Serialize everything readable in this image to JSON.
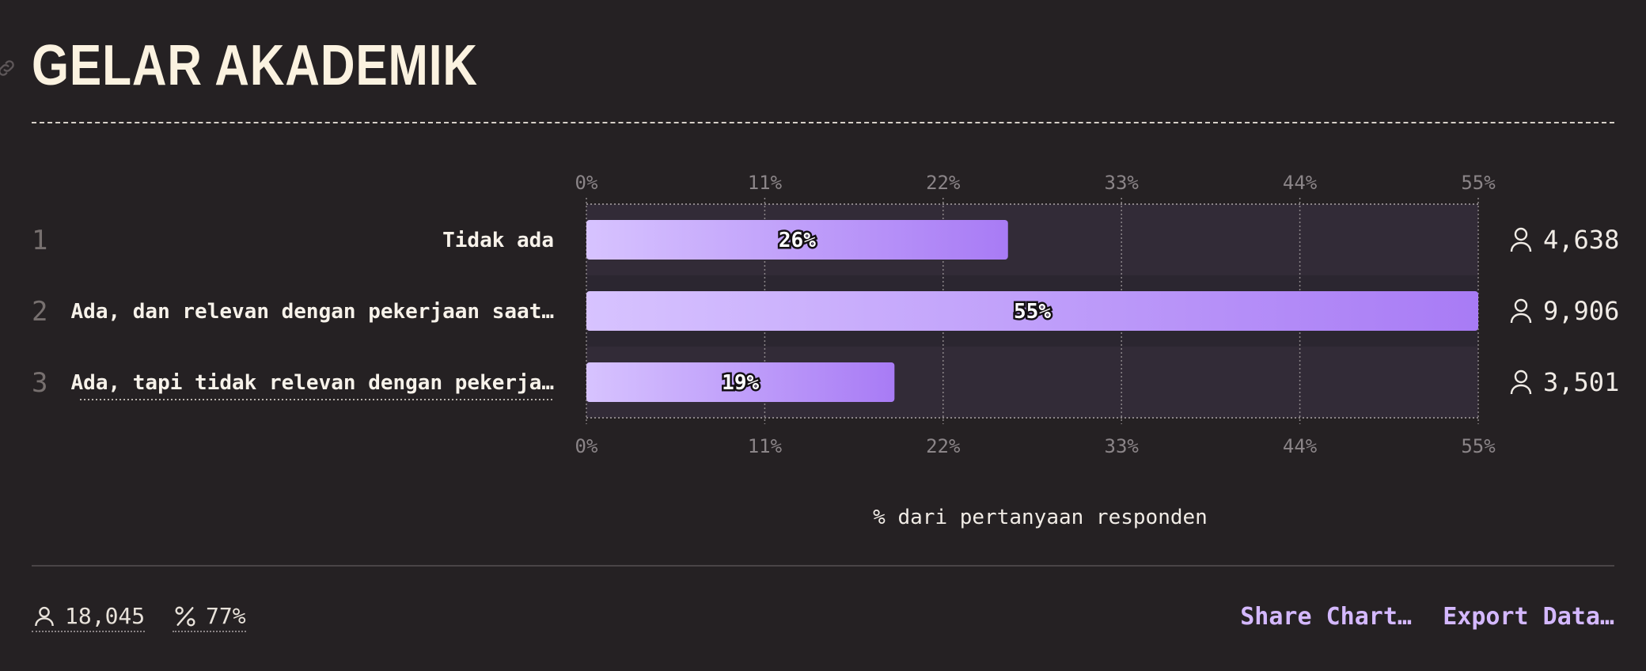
{
  "title": "GELAR AKADEMIK",
  "chart_data": {
    "type": "bar",
    "orientation": "horizontal",
    "title": "GELAR AKADEMIK",
    "xlabel": "% dari pertanyaan responden",
    "ylabel": "",
    "xlim": [
      0,
      55
    ],
    "ticks": [
      "0%",
      "11%",
      "22%",
      "33%",
      "44%",
      "55%"
    ],
    "grid": true,
    "categories": [
      "Tidak ada",
      "Ada, dan relevan dengan pekerjaan saat…",
      "Ada, tapi tidak relevan dengan pekerja…"
    ],
    "rows": [
      {
        "rank": "1",
        "label": "Tidak ada",
        "value": 26,
        "value_label": "26%",
        "count": "4,638"
      },
      {
        "rank": "2",
        "label": "Ada, dan relevan dengan pekerjaan saat…",
        "value": 55,
        "value_label": "55%",
        "count": "9,906"
      },
      {
        "rank": "3",
        "label": "Ada, tapi tidak relevan dengan pekerja…",
        "value": 19,
        "value_label": "19%",
        "count": "3,501"
      }
    ],
    "colors": {
      "bar_start": "#d7c3ff",
      "bar_end": "#a87bf5",
      "track": "#322b37"
    }
  },
  "footer": {
    "respondents": "18,045",
    "percent": "77%",
    "share_label": "Share Chart…",
    "export_label": "Export Data…"
  }
}
